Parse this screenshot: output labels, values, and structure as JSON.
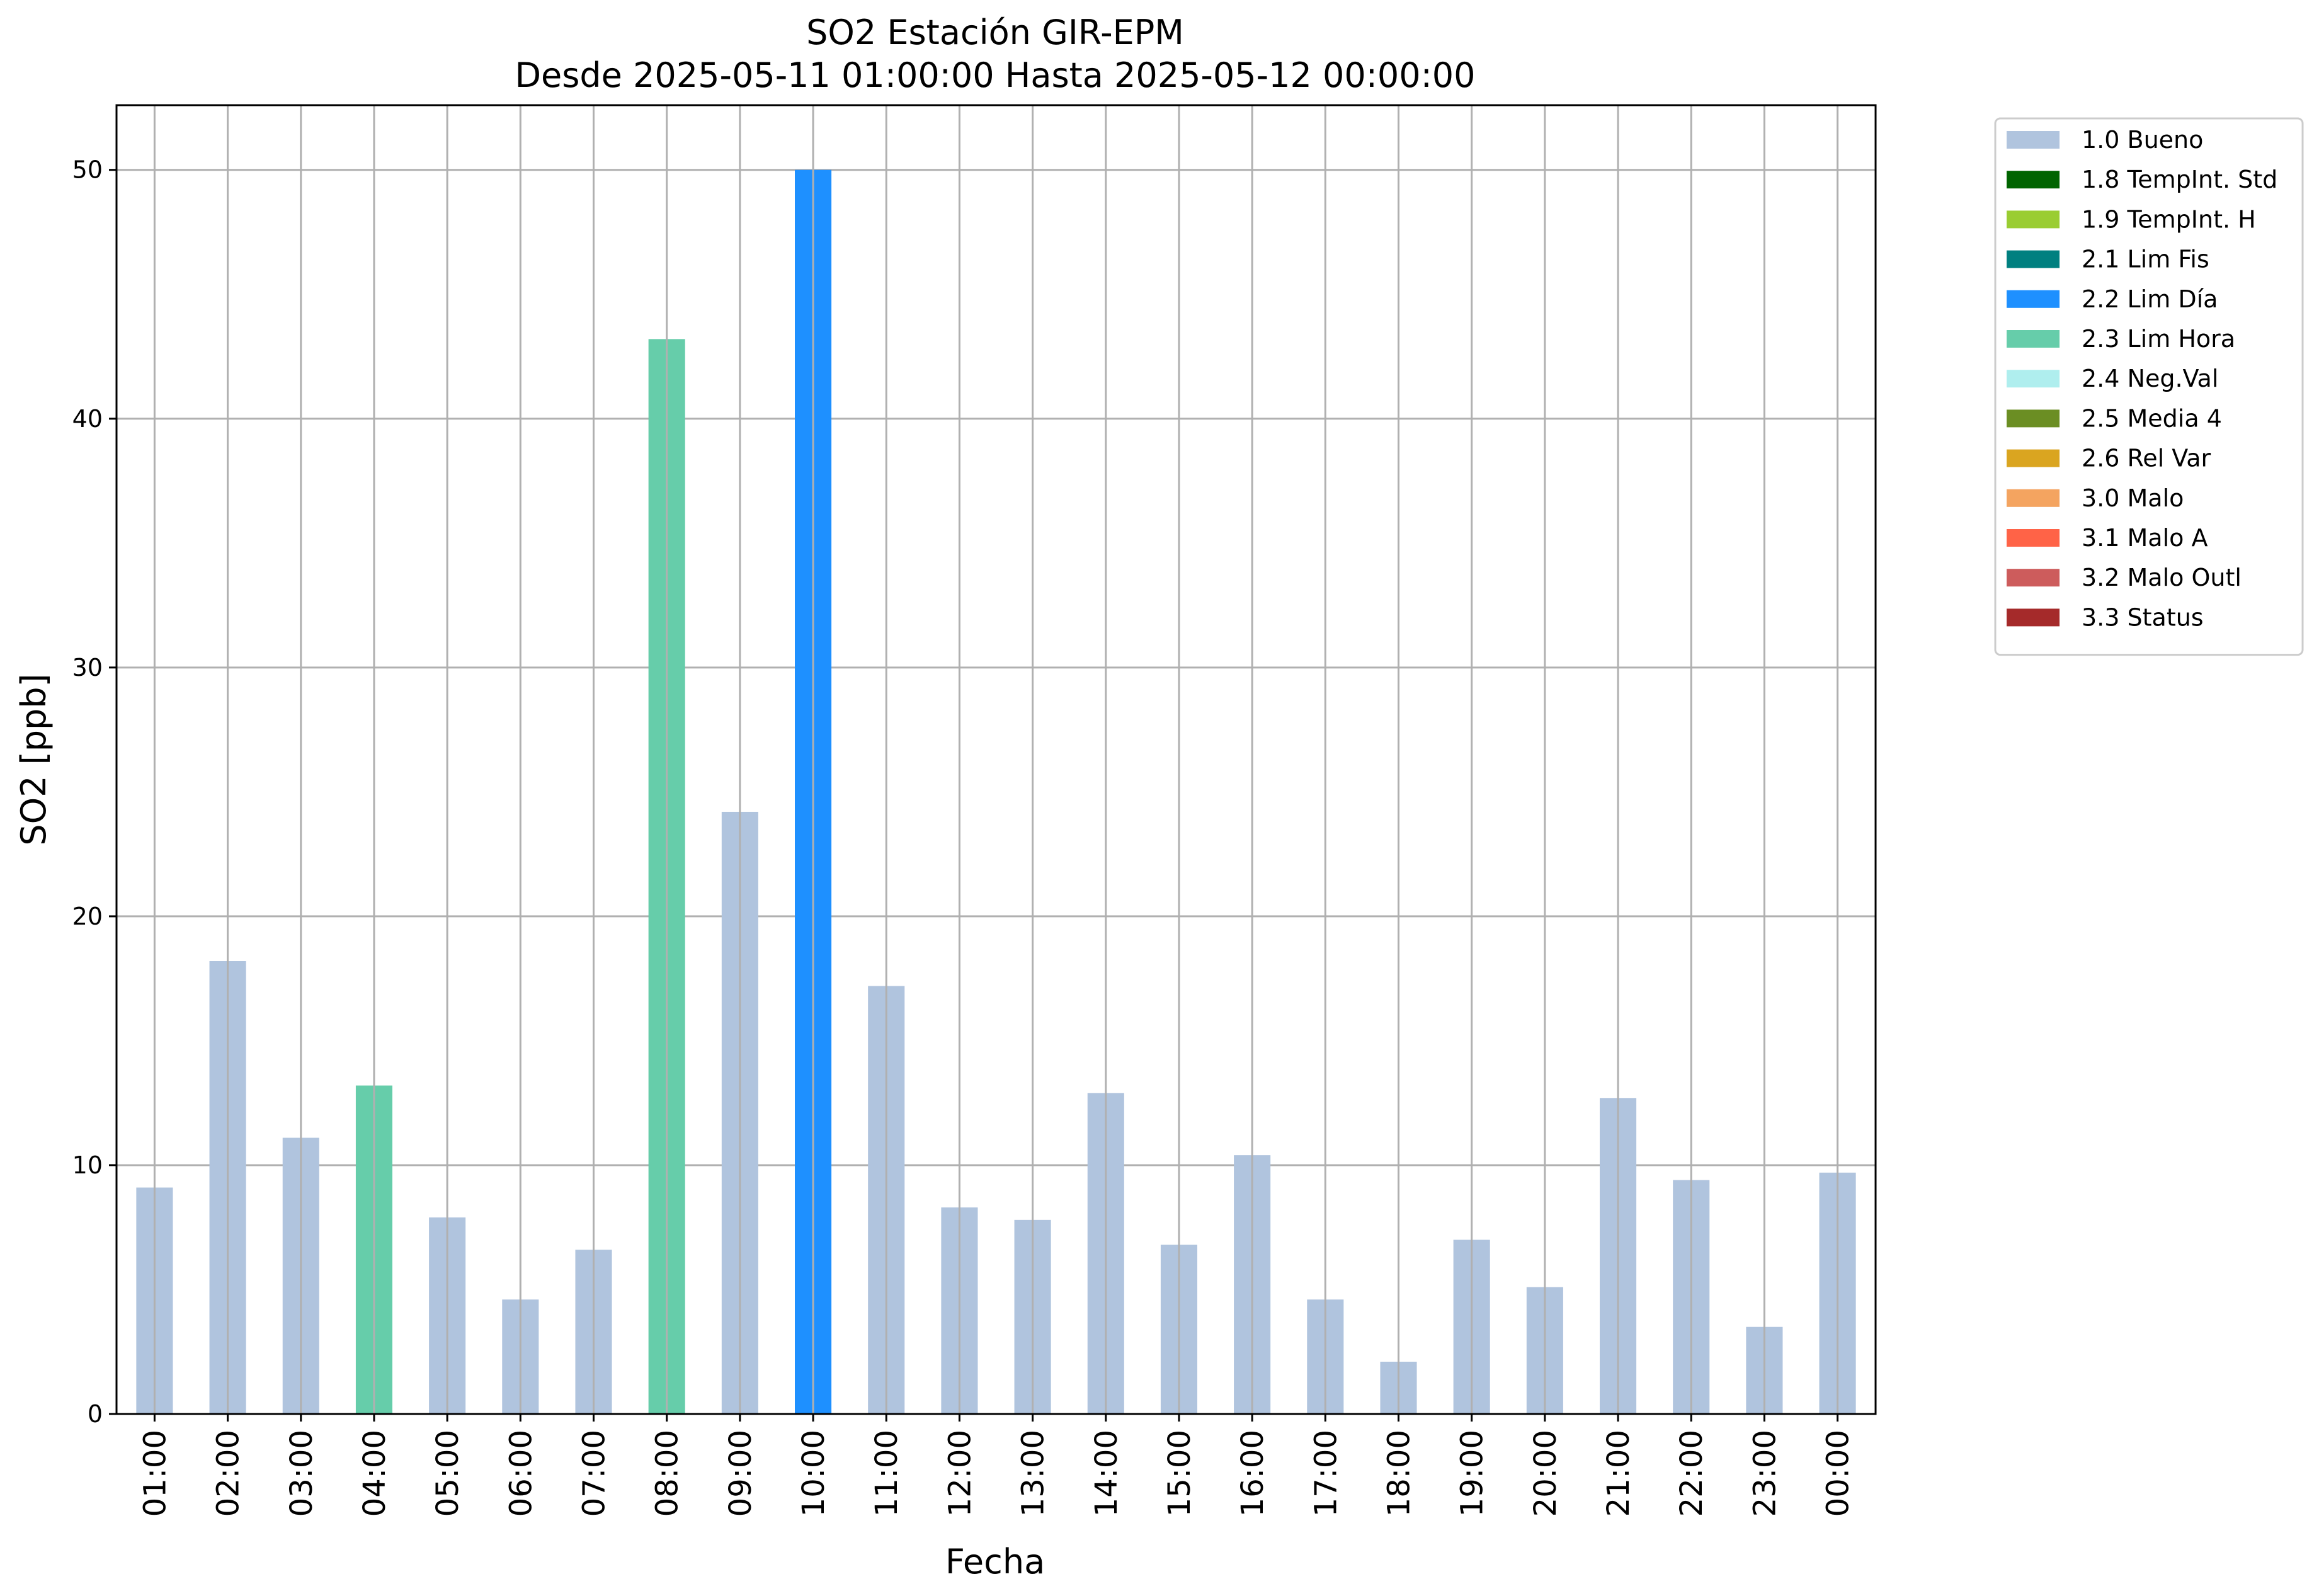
{
  "chart_data": {
    "type": "bar",
    "title": "SO2 Estación GIR-EPM",
    "subtitle": "Desde 2025-05-11 01:00:00 Hasta 2025-05-12 00:00:00",
    "xlabel": "Fecha",
    "ylabel": "SO2 [ppb]",
    "ylim": [
      0,
      52.6
    ],
    "yticks": [
      0,
      10,
      20,
      30,
      40,
      50
    ],
    "grid": true,
    "legend_position": "outside-top-right",
    "categories": [
      "01:00",
      "02:00",
      "03:00",
      "04:00",
      "05:00",
      "06:00",
      "07:00",
      "08:00",
      "09:00",
      "10:00",
      "11:00",
      "12:00",
      "13:00",
      "14:00",
      "15:00",
      "16:00",
      "17:00",
      "18:00",
      "19:00",
      "20:00",
      "21:00",
      "22:00",
      "23:00",
      "00:00"
    ],
    "values": [
      9.1,
      18.2,
      11.1,
      13.2,
      7.9,
      4.6,
      6.6,
      43.2,
      24.2,
      50.0,
      17.2,
      8.3,
      7.8,
      12.9,
      6.8,
      10.4,
      4.6,
      2.1,
      7.0,
      5.1,
      12.7,
      9.4,
      3.5,
      9.7
    ],
    "flags": [
      "1.0 Bueno",
      "1.0 Bueno",
      "1.0 Bueno",
      "2.3 Lim Hora",
      "1.0 Bueno",
      "1.0 Bueno",
      "1.0 Bueno",
      "2.3 Lim Hora",
      "1.0 Bueno",
      "2.2 Lim Día",
      "1.0 Bueno",
      "1.0 Bueno",
      "1.0 Bueno",
      "1.0 Bueno",
      "1.0 Bueno",
      "1.0 Bueno",
      "1.0 Bueno",
      "1.0 Bueno",
      "1.0 Bueno",
      "1.0 Bueno",
      "1.0 Bueno",
      "1.0 Bueno",
      "1.0 Bueno",
      "1.0 Bueno"
    ],
    "legend": [
      {
        "label": "1.0 Bueno",
        "color": "#b0c4de"
      },
      {
        "label": "1.8 TempInt. Std",
        "color": "#006400"
      },
      {
        "label": "1.9 TempInt. H",
        "color": "#9acd32"
      },
      {
        "label": "2.1 Lim Fis",
        "color": "#008080"
      },
      {
        "label": "2.2 Lim Día",
        "color": "#1e90ff"
      },
      {
        "label": "2.3 Lim Hora",
        "color": "#66cdaa"
      },
      {
        "label": "2.4 Neg.Val",
        "color": "#afeeee"
      },
      {
        "label": "2.5 Media 4",
        "color": "#6b8e23"
      },
      {
        "label": "2.6 Rel Var",
        "color": "#daa520"
      },
      {
        "label": "3.0 Malo",
        "color": "#f4a460"
      },
      {
        "label": "3.1 Malo A",
        "color": "#ff6347"
      },
      {
        "label": "3.2 Malo Outl",
        "color": "#cd5c5c"
      },
      {
        "label": "3.3 Status",
        "color": "#a52a2a"
      }
    ]
  }
}
